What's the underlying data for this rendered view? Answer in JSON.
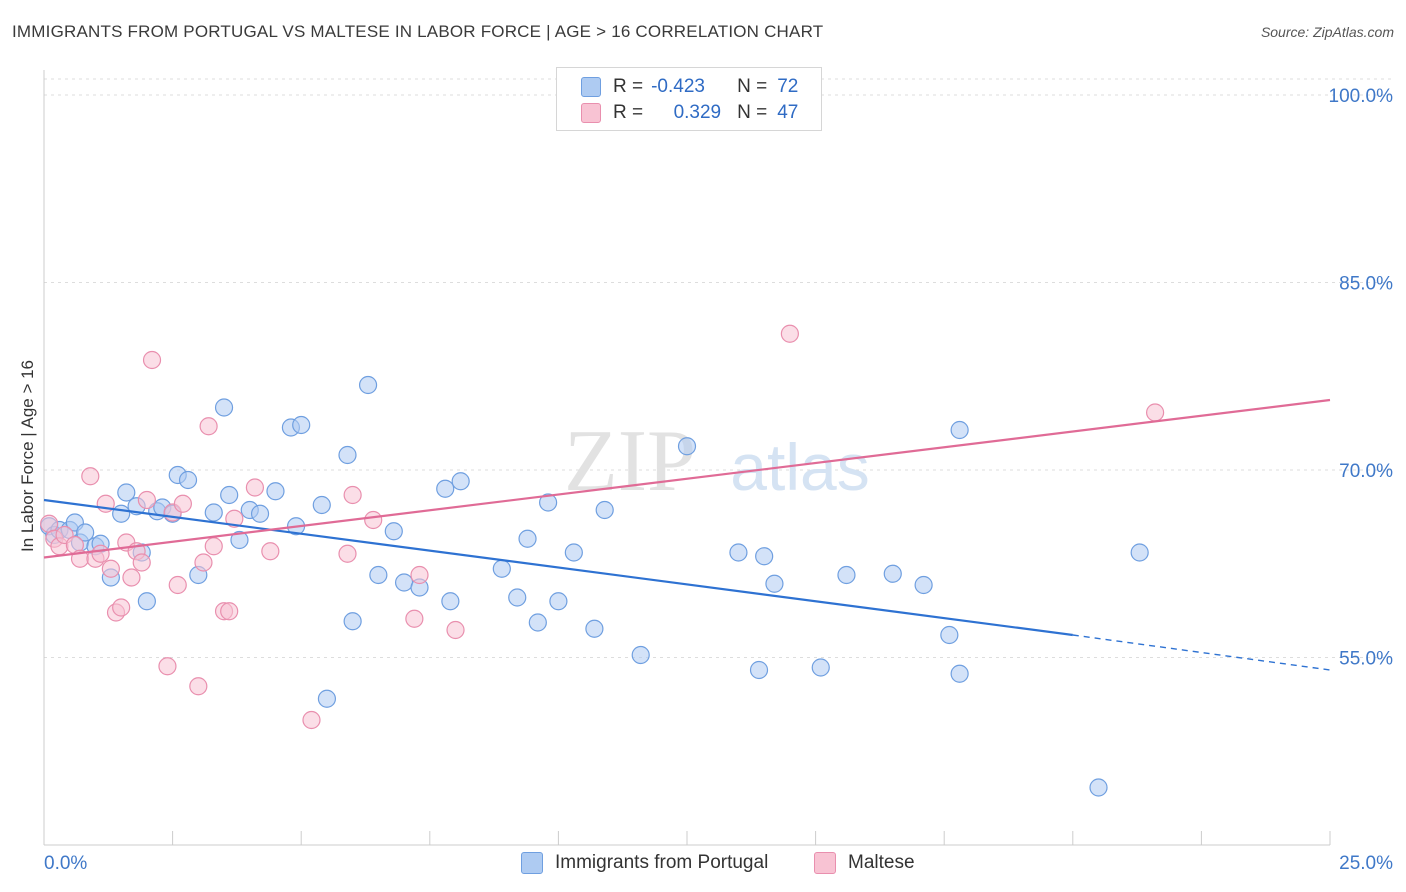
{
  "title": "IMMIGRANTS FROM PORTUGAL VS MALTESE IN LABOR FORCE | AGE > 16 CORRELATION CHART",
  "source": "Source: ZipAtlas.com",
  "watermark": {
    "zip": "ZIP",
    "atlas": "atlas"
  },
  "legend": {
    "row1": {
      "r_label": "R =",
      "r_value": "-0.423",
      "n_label": "N =",
      "n_value": "72"
    },
    "row2": {
      "r_label": "R =",
      "r_value": "0.329",
      "n_label": "N =",
      "n_value": "47"
    }
  },
  "colors": {
    "blue_fill": "#aecbf2",
    "blue_stroke": "#6f9fe0",
    "blue_line": "#2e72d2",
    "pink_fill": "#f8c3d3",
    "pink_stroke": "#e98fae",
    "pink_line": "#e06b96",
    "axis_text": "#3f78c8",
    "grid": "#dddddd"
  },
  "chart_data": {
    "type": "scatter",
    "title": "IMMIGRANTS FROM PORTUGAL VS MALTESE IN LABOR FORCE | AGE > 16 CORRELATION CHART",
    "xlabel": "",
    "ylabel": "In Labor Force | Age > 16",
    "xlim": [
      0,
      25
    ],
    "ylim": [
      40,
      102
    ],
    "x_tick_labels": [
      "0.0%",
      "25.0%"
    ],
    "y_ticks": [
      55,
      70,
      85,
      100
    ],
    "y_tick_labels": [
      "55.0%",
      "70.0%",
      "85.0%",
      "100.0%"
    ],
    "grid": true,
    "legend_position": "bottom",
    "series": [
      {
        "name": "Immigrants from Portugal",
        "color": "#aecbf2",
        "r": -0.423,
        "n": 72,
        "trend": {
          "x0": 0,
          "y0": 67.6,
          "x1": 20,
          "y1": 56.8,
          "dashed_to_x": 25,
          "dashed_to_y": 54.0
        },
        "points": [
          [
            0.1,
            65.5
          ],
          [
            0.2,
            64.8
          ],
          [
            0.3,
            65.2
          ],
          [
            0.5,
            65.2
          ],
          [
            0.6,
            65.8
          ],
          [
            0.7,
            64.2
          ],
          [
            0.8,
            65.0
          ],
          [
            1.0,
            63.9
          ],
          [
            1.1,
            64.1
          ],
          [
            1.3,
            61.4
          ],
          [
            1.5,
            66.5
          ],
          [
            1.6,
            68.2
          ],
          [
            1.8,
            67.1
          ],
          [
            1.9,
            63.4
          ],
          [
            2.0,
            59.5
          ],
          [
            2.2,
            66.7
          ],
          [
            2.3,
            67.0
          ],
          [
            2.5,
            66.5
          ],
          [
            2.6,
            69.6
          ],
          [
            2.8,
            69.2
          ],
          [
            3.0,
            61.6
          ],
          [
            3.3,
            66.6
          ],
          [
            3.5,
            75.0
          ],
          [
            3.6,
            68.0
          ],
          [
            3.8,
            64.4
          ],
          [
            4.0,
            66.8
          ],
          [
            4.2,
            66.5
          ],
          [
            4.5,
            68.3
          ],
          [
            4.8,
            73.4
          ],
          [
            4.9,
            65.5
          ],
          [
            5.0,
            73.6
          ],
          [
            5.4,
            67.2
          ],
          [
            5.5,
            51.7
          ],
          [
            5.9,
            71.2
          ],
          [
            6.0,
            57.9
          ],
          [
            6.3,
            76.8
          ],
          [
            6.5,
            61.6
          ],
          [
            6.8,
            65.1
          ],
          [
            7.0,
            61.0
          ],
          [
            7.3,
            60.6
          ],
          [
            7.8,
            68.5
          ],
          [
            7.9,
            59.5
          ],
          [
            8.1,
            69.1
          ],
          [
            8.9,
            62.1
          ],
          [
            9.2,
            59.8
          ],
          [
            9.4,
            64.5
          ],
          [
            9.6,
            57.8
          ],
          [
            9.8,
            67.4
          ],
          [
            10.0,
            59.5
          ],
          [
            10.3,
            63.4
          ],
          [
            10.7,
            57.3
          ],
          [
            10.9,
            66.8
          ],
          [
            11.6,
            55.2
          ],
          [
            12.5,
            71.9
          ],
          [
            13.5,
            63.4
          ],
          [
            13.9,
            54.0
          ],
          [
            14.0,
            63.1
          ],
          [
            14.2,
            60.9
          ],
          [
            15.1,
            54.2
          ],
          [
            15.6,
            61.6
          ],
          [
            16.5,
            61.7
          ],
          [
            17.1,
            60.8
          ],
          [
            17.6,
            56.8
          ],
          [
            17.8,
            53.7
          ],
          [
            17.8,
            73.2
          ],
          [
            20.5,
            44.6
          ],
          [
            21.3,
            63.4
          ]
        ]
      },
      {
        "name": "Maltese",
        "color": "#f8c3d3",
        "r": 0.329,
        "n": 47,
        "trend": {
          "x0": 0,
          "y0": 63.0,
          "x1": 25,
          "y1": 75.6
        },
        "points": [
          [
            0.1,
            65.7
          ],
          [
            0.2,
            64.5
          ],
          [
            0.3,
            63.9
          ],
          [
            0.4,
            64.8
          ],
          [
            0.6,
            64.0
          ],
          [
            0.7,
            62.9
          ],
          [
            0.9,
            69.5
          ],
          [
            1.0,
            62.9
          ],
          [
            1.1,
            63.3
          ],
          [
            1.2,
            67.3
          ],
          [
            1.3,
            62.1
          ],
          [
            1.4,
            58.6
          ],
          [
            1.5,
            59.0
          ],
          [
            1.6,
            64.2
          ],
          [
            1.7,
            61.4
          ],
          [
            1.8,
            63.5
          ],
          [
            1.9,
            62.6
          ],
          [
            2.0,
            67.6
          ],
          [
            2.1,
            78.8
          ],
          [
            2.4,
            54.3
          ],
          [
            2.5,
            66.6
          ],
          [
            2.6,
            60.8
          ],
          [
            2.7,
            67.3
          ],
          [
            3.0,
            52.7
          ],
          [
            3.1,
            62.6
          ],
          [
            3.2,
            73.5
          ],
          [
            3.3,
            63.9
          ],
          [
            3.5,
            58.7
          ],
          [
            3.6,
            58.7
          ],
          [
            3.7,
            66.1
          ],
          [
            4.1,
            68.6
          ],
          [
            4.4,
            63.5
          ],
          [
            5.2,
            50.0
          ],
          [
            5.9,
            63.3
          ],
          [
            6.0,
            68.0
          ],
          [
            6.4,
            66.0
          ],
          [
            7.2,
            58.1
          ],
          [
            7.3,
            61.6
          ],
          [
            8.0,
            57.2
          ],
          [
            14.5,
            80.9
          ],
          [
            21.6,
            74.6
          ]
        ]
      }
    ]
  }
}
